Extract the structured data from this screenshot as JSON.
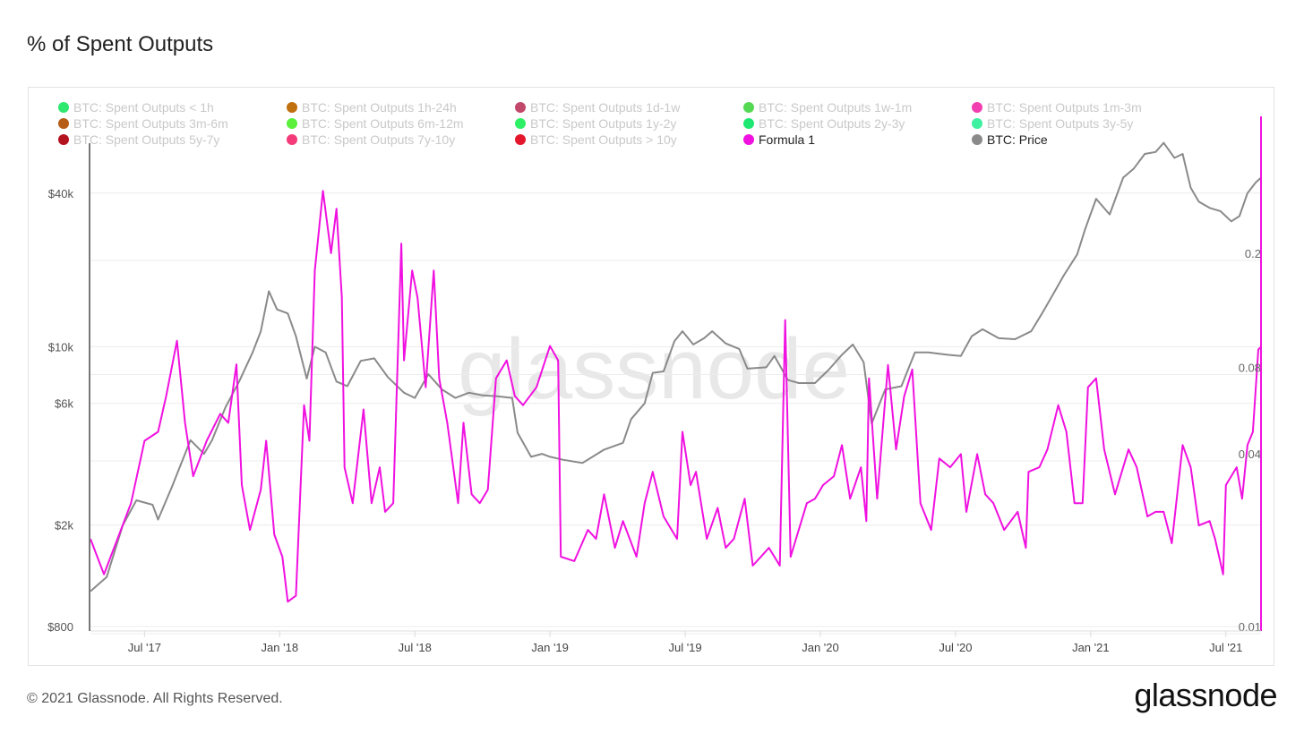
{
  "page": {
    "title": "% of Spent Outputs",
    "footer": "© 2021 Glassnode. All Rights Reserved.",
    "logo": "glassnode",
    "watermark": "glassnode"
  },
  "legend": [
    {
      "label": "BTC: Spent Outputs < 1h",
      "color": "#2ee86f",
      "active": false
    },
    {
      "label": "BTC: Spent Outputs 1h-24h",
      "color": "#c0700f",
      "active": false
    },
    {
      "label": "BTC: Spent Outputs 1d-1w",
      "color": "#c2486a",
      "active": false
    },
    {
      "label": "BTC: Spent Outputs 1w-1m",
      "color": "#55d854",
      "active": false
    },
    {
      "label": "BTC: Spent Outputs 1m-3m",
      "color": "#f23fb0",
      "active": false
    },
    {
      "label": "BTC: Spent Outputs 3m-6m",
      "color": "#b55d16",
      "active": false
    },
    {
      "label": "BTC: Spent Outputs 6m-12m",
      "color": "#5cf03c",
      "active": false
    },
    {
      "label": "BTC: Spent Outputs 1y-2y",
      "color": "#2ef064",
      "active": false
    },
    {
      "label": "BTC: Spent Outputs 2y-3y",
      "color": "#1ee872",
      "active": false
    },
    {
      "label": "BTC: Spent Outputs 3y-5y",
      "color": "#3ef0a0",
      "active": false
    },
    {
      "label": "BTC: Spent Outputs 5y-7y",
      "color": "#b3121f",
      "active": false
    },
    {
      "label": "BTC: Spent Outputs 7y-10y",
      "color": "#f53a7a",
      "active": false
    },
    {
      "label": "BTC: Spent Outputs > 10y",
      "color": "#e4162c",
      "active": false
    },
    {
      "label": "Formula 1",
      "color": "#f011e0",
      "active": true
    },
    {
      "label": "BTC: Price",
      "color": "#8a8a8a",
      "active": true
    }
  ],
  "chart_data": {
    "type": "line",
    "title": "% of Spent Outputs",
    "x_unit": "decimal year",
    "xlim": [
      2017.3,
      2021.63
    ],
    "x_ticks": [
      {
        "label": "Jul '17",
        "x": 2017.5
      },
      {
        "label": "Jan '18",
        "x": 2018.0
      },
      {
        "label": "Jul '18",
        "x": 2018.5
      },
      {
        "label": "Jan '19",
        "x": 2019.0
      },
      {
        "label": "Jul '19",
        "x": 2019.5
      },
      {
        "label": "Jan '20",
        "x": 2020.0
      },
      {
        "label": "Jul '20",
        "x": 2020.5
      },
      {
        "label": "Jan '21",
        "x": 2021.0
      },
      {
        "label": "Jul '21",
        "x": 2021.5
      }
    ],
    "y_left": {
      "scale": "log",
      "ylim": [
        800,
        80000
      ],
      "ticks": [
        {
          "label": "$800",
          "v": 800
        },
        {
          "label": "$2k",
          "v": 2000
        },
        {
          "label": "$6k",
          "v": 6000
        },
        {
          "label": "$10k",
          "v": 10000
        },
        {
          "label": "$40k",
          "v": 40000
        }
      ]
    },
    "y_right": {
      "scale": "log",
      "ylim": [
        0.01,
        0.6
      ],
      "ticks": [
        {
          "label": "0.01",
          "v": 0.01
        },
        {
          "label": "0.04",
          "v": 0.04
        },
        {
          "label": "0.08",
          "v": 0.08
        },
        {
          "label": "0.2",
          "v": 0.2
        }
      ]
    },
    "series": [
      {
        "name": "BTC: Price",
        "axis": "left",
        "color": "#8a8a8a",
        "points": [
          [
            2017.3,
            1100
          ],
          [
            2017.36,
            1250
          ],
          [
            2017.42,
            2000
          ],
          [
            2017.47,
            2500
          ],
          [
            2017.53,
            2400
          ],
          [
            2017.55,
            2100
          ],
          [
            2017.6,
            2800
          ],
          [
            2017.67,
            4300
          ],
          [
            2017.72,
            3800
          ],
          [
            2017.75,
            4300
          ],
          [
            2017.8,
            5800
          ],
          [
            2017.85,
            7300
          ],
          [
            2017.9,
            9500
          ],
          [
            2017.93,
            11500
          ],
          [
            2017.96,
            16500
          ],
          [
            2017.99,
            14000
          ],
          [
            2018.03,
            13500
          ],
          [
            2018.06,
            11000
          ],
          [
            2018.1,
            7500
          ],
          [
            2018.13,
            10000
          ],
          [
            2018.17,
            9500
          ],
          [
            2018.21,
            7300
          ],
          [
            2018.25,
            7000
          ],
          [
            2018.3,
            8800
          ],
          [
            2018.35,
            9000
          ],
          [
            2018.4,
            7600
          ],
          [
            2018.46,
            6600
          ],
          [
            2018.5,
            6300
          ],
          [
            2018.55,
            7800
          ],
          [
            2018.6,
            6800
          ],
          [
            2018.65,
            6300
          ],
          [
            2018.7,
            6600
          ],
          [
            2018.75,
            6450
          ],
          [
            2018.8,
            6400
          ],
          [
            2018.86,
            6300
          ],
          [
            2018.88,
            4600
          ],
          [
            2018.93,
            3700
          ],
          [
            2018.97,
            3800
          ],
          [
            2019.0,
            3700
          ],
          [
            2019.05,
            3600
          ],
          [
            2019.12,
            3500
          ],
          [
            2019.2,
            3950
          ],
          [
            2019.27,
            4200
          ],
          [
            2019.3,
            5200
          ],
          [
            2019.35,
            6000
          ],
          [
            2019.38,
            7900
          ],
          [
            2019.42,
            8000
          ],
          [
            2019.46,
            10500
          ],
          [
            2019.49,
            11500
          ],
          [
            2019.53,
            10200
          ],
          [
            2019.57,
            10800
          ],
          [
            2019.6,
            11500
          ],
          [
            2019.65,
            10300
          ],
          [
            2019.7,
            9800
          ],
          [
            2019.73,
            8200
          ],
          [
            2019.8,
            8300
          ],
          [
            2019.83,
            9200
          ],
          [
            2019.88,
            7400
          ],
          [
            2019.92,
            7200
          ],
          [
            2019.98,
            7200
          ],
          [
            2020.03,
            8100
          ],
          [
            2020.08,
            9300
          ],
          [
            2020.12,
            10200
          ],
          [
            2020.16,
            8700
          ],
          [
            2020.19,
            5000
          ],
          [
            2020.24,
            6800
          ],
          [
            2020.3,
            7000
          ],
          [
            2020.35,
            9500
          ],
          [
            2020.4,
            9500
          ],
          [
            2020.47,
            9300
          ],
          [
            2020.52,
            9200
          ],
          [
            2020.56,
            11000
          ],
          [
            2020.6,
            11700
          ],
          [
            2020.66,
            10800
          ],
          [
            2020.72,
            10700
          ],
          [
            2020.78,
            11500
          ],
          [
            2020.82,
            13500
          ],
          [
            2020.86,
            16000
          ],
          [
            2020.9,
            19000
          ],
          [
            2020.95,
            23000
          ],
          [
            2020.98,
            29000
          ],
          [
            2021.02,
            38000
          ],
          [
            2021.07,
            33000
          ],
          [
            2021.12,
            46000
          ],
          [
            2021.16,
            50000
          ],
          [
            2021.2,
            57000
          ],
          [
            2021.24,
            58000
          ],
          [
            2021.27,
            63000
          ],
          [
            2021.31,
            55000
          ],
          [
            2021.34,
            57000
          ],
          [
            2021.37,
            42000
          ],
          [
            2021.4,
            37000
          ],
          [
            2021.44,
            35000
          ],
          [
            2021.48,
            34000
          ],
          [
            2021.52,
            31000
          ],
          [
            2021.55,
            32500
          ],
          [
            2021.58,
            40000
          ],
          [
            2021.61,
            44000
          ],
          [
            2021.63,
            46000
          ]
        ]
      },
      {
        "name": "Formula 1",
        "axis": "right",
        "color": "#f011e0",
        "points": [
          [
            2017.3,
            0.0202
          ],
          [
            2017.35,
            0.0152
          ],
          [
            2017.4,
            0.0202
          ],
          [
            2017.45,
            0.0269
          ],
          [
            2017.5,
            0.0444
          ],
          [
            2017.55,
            0.0477
          ],
          [
            2017.58,
            0.0635
          ],
          [
            2017.62,
            0.099
          ],
          [
            2017.65,
            0.0513
          ],
          [
            2017.68,
            0.0334
          ],
          [
            2017.73,
            0.0444
          ],
          [
            2017.78,
            0.0551
          ],
          [
            2017.81,
            0.0513
          ],
          [
            2017.84,
            0.082
          ],
          [
            2017.86,
            0.0311
          ],
          [
            2017.89,
            0.0217
          ],
          [
            2017.93,
            0.03
          ],
          [
            2017.95,
            0.0444
          ],
          [
            2017.98,
            0.0209
          ],
          [
            2018.01,
            0.0175
          ],
          [
            2018.03,
            0.0122
          ],
          [
            2018.06,
            0.0128
          ],
          [
            2018.09,
            0.0591
          ],
          [
            2018.11,
            0.0444
          ],
          [
            2018.13,
            0.174
          ],
          [
            2018.16,
            0.33
          ],
          [
            2018.19,
            0.2
          ],
          [
            2018.21,
            0.286
          ],
          [
            2018.23,
            0.14
          ],
          [
            2018.24,
            0.0359
          ],
          [
            2018.27,
            0.0269
          ],
          [
            2018.31,
            0.0571
          ],
          [
            2018.34,
            0.0269
          ],
          [
            2018.37,
            0.0359
          ],
          [
            2018.39,
            0.0251
          ],
          [
            2018.42,
            0.0269
          ],
          [
            2018.45,
            0.216
          ],
          [
            2018.46,
            0.0846
          ],
          [
            2018.49,
            0.174
          ],
          [
            2018.51,
            0.14
          ],
          [
            2018.54,
            0.0682
          ],
          [
            2018.57,
            0.174
          ],
          [
            2018.59,
            0.0733
          ],
          [
            2018.62,
            0.0513
          ],
          [
            2018.66,
            0.0269
          ],
          [
            2018.68,
            0.0513
          ],
          [
            2018.71,
            0.0289
          ],
          [
            2018.74,
            0.0269
          ],
          [
            2018.77,
            0.03
          ],
          [
            2018.8,
            0.0733
          ],
          [
            2018.84,
            0.0846
          ],
          [
            2018.87,
            0.0635
          ],
          [
            2018.9,
            0.0591
          ],
          [
            2018.95,
            0.0682
          ],
          [
            2019.0,
            0.095
          ],
          [
            2019.03,
            0.0846
          ],
          [
            2019.04,
            0.0175
          ],
          [
            2019.09,
            0.0169
          ],
          [
            2019.14,
            0.0217
          ],
          [
            2019.17,
            0.0202
          ],
          [
            2019.2,
            0.0289
          ],
          [
            2019.24,
            0.0188
          ],
          [
            2019.27,
            0.0233
          ],
          [
            2019.32,
            0.0175
          ],
          [
            2019.35,
            0.0269
          ],
          [
            2019.38,
            0.0346
          ],
          [
            2019.42,
            0.0242
          ],
          [
            2019.47,
            0.0202
          ],
          [
            2019.49,
            0.0477
          ],
          [
            2019.52,
            0.0311
          ],
          [
            2019.54,
            0.0346
          ],
          [
            2019.58,
            0.0202
          ],
          [
            2019.62,
            0.0259
          ],
          [
            2019.65,
            0.0188
          ],
          [
            2019.68,
            0.0202
          ],
          [
            2019.72,
            0.0279
          ],
          [
            2019.75,
            0.0163
          ],
          [
            2019.78,
            0.0175
          ],
          [
            2019.81,
            0.0188
          ],
          [
            2019.85,
            0.0163
          ],
          [
            2019.87,
            0.117
          ],
          [
            2019.89,
            0.0175
          ],
          [
            2019.91,
            0.0202
          ],
          [
            2019.95,
            0.0269
          ],
          [
            2019.98,
            0.0279
          ],
          [
            2020.01,
            0.0311
          ],
          [
            2020.05,
            0.0334
          ],
          [
            2020.08,
            0.0429
          ],
          [
            2020.11,
            0.0279
          ],
          [
            2020.15,
            0.0359
          ],
          [
            2020.17,
            0.0233
          ],
          [
            2020.18,
            0.0733
          ],
          [
            2020.21,
            0.0279
          ],
          [
            2020.25,
            0.0816
          ],
          [
            2020.28,
            0.0414
          ],
          [
            2020.31,
            0.0635
          ],
          [
            2020.34,
            0.0787
          ],
          [
            2020.37,
            0.0269
          ],
          [
            2020.41,
            0.0217
          ],
          [
            2020.44,
            0.0385
          ],
          [
            2020.48,
            0.0359
          ],
          [
            2020.52,
            0.0399
          ],
          [
            2020.54,
            0.0251
          ],
          [
            2020.58,
            0.0399
          ],
          [
            2020.61,
            0.0289
          ],
          [
            2020.64,
            0.0269
          ],
          [
            2020.68,
            0.0217
          ],
          [
            2020.73,
            0.0251
          ],
          [
            2020.76,
            0.0188
          ],
          [
            2020.77,
            0.0346
          ],
          [
            2020.81,
            0.0359
          ],
          [
            2020.84,
            0.0414
          ],
          [
            2020.88,
            0.0591
          ],
          [
            2020.91,
            0.0477
          ],
          [
            2020.94,
            0.0269
          ],
          [
            2020.97,
            0.0269
          ],
          [
            2020.99,
            0.0682
          ],
          [
            2021.02,
            0.0733
          ],
          [
            2021.05,
            0.0414
          ],
          [
            2021.09,
            0.0289
          ],
          [
            2021.14,
            0.0414
          ],
          [
            2021.17,
            0.0359
          ],
          [
            2021.21,
            0.0242
          ],
          [
            2021.24,
            0.0251
          ],
          [
            2021.27,
            0.0251
          ],
          [
            2021.3,
            0.0195
          ],
          [
            2021.34,
            0.0429
          ],
          [
            2021.37,
            0.0359
          ],
          [
            2021.4,
            0.0225
          ],
          [
            2021.44,
            0.0233
          ],
          [
            2021.46,
            0.0202
          ],
          [
            2021.49,
            0.0152
          ],
          [
            2021.5,
            0.0311
          ],
          [
            2021.54,
            0.0359
          ],
          [
            2021.56,
            0.0279
          ],
          [
            2021.58,
            0.0429
          ],
          [
            2021.6,
            0.0477
          ],
          [
            2021.62,
            0.0923
          ],
          [
            2021.63,
            0.0943
          ]
        ]
      }
    ],
    "grid": true,
    "legend_position": "top"
  }
}
